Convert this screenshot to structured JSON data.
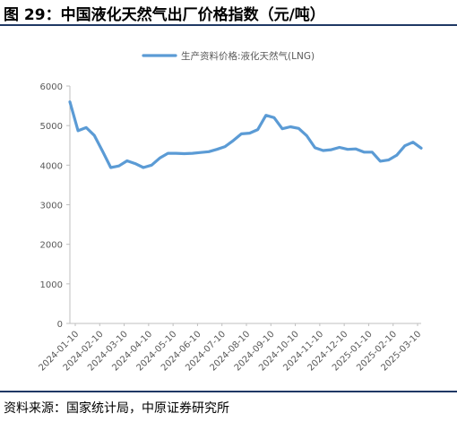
{
  "figure_title": "图 29：中国液化天然气出厂价格指数（元/吨）",
  "source_note": "资料来源：国家统计局，中原证券研究所",
  "colors": {
    "line": "#5b9bd5",
    "axis": "#bfbfbf",
    "rule": "#1f3864"
  },
  "chart_data": {
    "type": "line",
    "title": "",
    "xlabel": "",
    "ylabel": "",
    "ylim": [
      0,
      6000
    ],
    "yticks": [
      0,
      1000,
      2000,
      3000,
      4000,
      5000,
      6000
    ],
    "grid": false,
    "legend_position": "top",
    "x_tick_labels": [
      "2024-01-10",
      "2024-02-10",
      "2024-03-10",
      "2024-04-10",
      "2024-05-10",
      "2024-06-10",
      "2024-07-10",
      "2024-08-10",
      "2024-09-10",
      "2024-10-10",
      "2024-11-10",
      "2024-12-10",
      "2025-01-10",
      "2025-02-10",
      "2025-03-10"
    ],
    "series": [
      {
        "name": "生产资料价格:液化天然气(LNG)",
        "values": [
          5600,
          4870,
          4950,
          4750,
          4350,
          3940,
          3980,
          4110,
          4040,
          3940,
          4000,
          4180,
          4300,
          4300,
          4290,
          4300,
          4320,
          4340,
          4400,
          4470,
          4620,
          4790,
          4810,
          4900,
          5260,
          5200,
          4920,
          4970,
          4930,
          4740,
          4440,
          4370,
          4390,
          4450,
          4400,
          4410,
          4330,
          4330,
          4100,
          4130,
          4250,
          4490,
          4580,
          4430
        ]
      }
    ]
  }
}
